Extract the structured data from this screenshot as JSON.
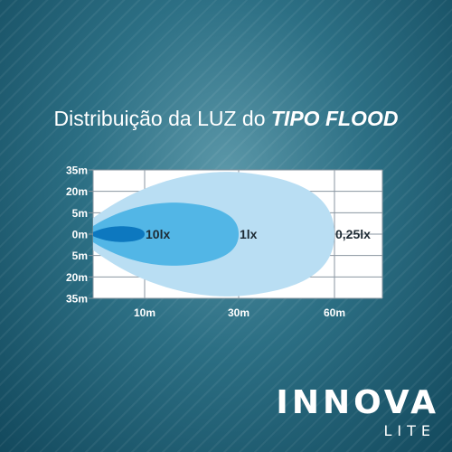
{
  "title": {
    "prefix": "Distribuição da LUZ do ",
    "emphasis": "TIPO FLOOD"
  },
  "brand": {
    "name": "INNOVA",
    "sub": "LITE"
  },
  "colors": {
    "plot_bg": "#ffffff",
    "grid": "#8a96a0",
    "zone_outer": "#b9def3",
    "zone_mid": "#52b6e6",
    "zone_inner": "#0d78bf",
    "tick_text": "#ffffff",
    "label_text": "#1d2a33"
  },
  "chart_data": {
    "type": "area",
    "title": "Distribuição da LUZ do TIPO FLOOD",
    "xlabel": "",
    "ylabel": "",
    "grid": true,
    "x_ticks": [
      {
        "value": 10,
        "label": "10m"
      },
      {
        "value": 30,
        "label": "30m"
      },
      {
        "value": 60,
        "label": "60m"
      }
    ],
    "y_ticks": [
      {
        "value": -35,
        "label": "35m"
      },
      {
        "value": -20,
        "label": "20m"
      },
      {
        "value": -5,
        "label": "5m"
      },
      {
        "value": 0,
        "label": "0m"
      },
      {
        "value": 5,
        "label": "5m"
      },
      {
        "value": 20,
        "label": "20m"
      },
      {
        "value": 35,
        "label": "35m"
      }
    ],
    "series": [
      {
        "name": "0,25lx",
        "reach": 60
      },
      {
        "name": "1lx",
        "reach": 30
      },
      {
        "name": "10lx",
        "reach": 10
      }
    ]
  }
}
